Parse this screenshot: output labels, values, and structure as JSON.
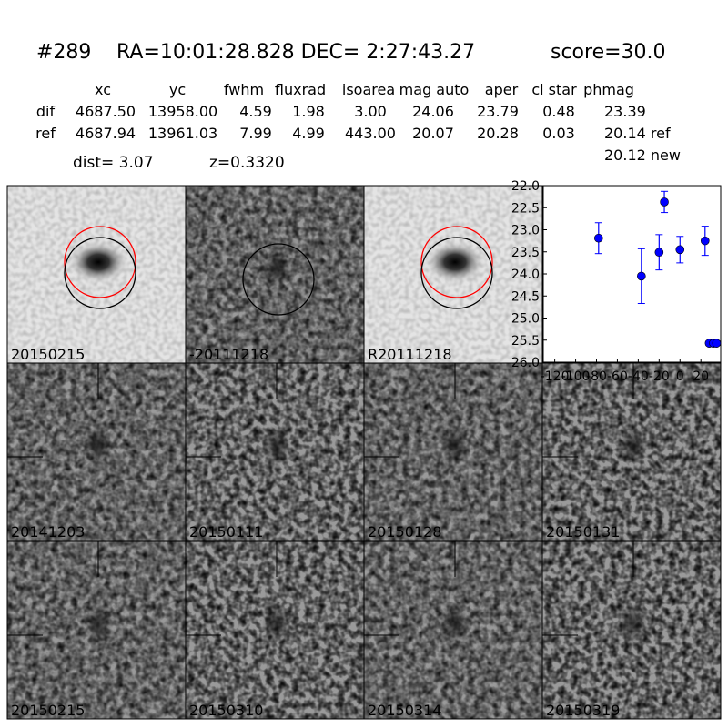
{
  "header": {
    "id": "#289",
    "coords": "RA=10:01:28.828 DEC= 2:27:43.27",
    "score": "score=30.0"
  },
  "table": {
    "columns": [
      "xc",
      "yc",
      "fwhm",
      "fluxrad",
      "isoarea",
      "mag auto",
      "aper",
      "cl star",
      "phmag"
    ],
    "rows": [
      [
        "dif",
        "4687.50",
        "13958.00",
        "4.59",
        "1.98",
        "3.00",
        "24.06",
        "23.79",
        "0.48",
        "23.39"
      ],
      [
        "ref",
        "4687.94",
        "13961.03",
        "7.99",
        "4.99",
        "443.00",
        "20.07",
        "20.28",
        "0.03",
        "20.14 ref"
      ]
    ],
    "extra": "20.12 new"
  },
  "dist": "dist=  3.07",
  "z": "z=0.3320",
  "panels": [
    "20150215",
    "-20111218",
    "R20111218",
    "20141203",
    "20150111",
    "20150128",
    "20150131",
    "20150215",
    "20150310",
    "20150314",
    "20150319"
  ],
  "chart_data": {
    "type": "scatter",
    "x": [
      -78,
      -37,
      -20,
      -15,
      0,
      24,
      28,
      32,
      35
    ],
    "series": [
      {
        "color": "#0000ff",
        "values": [
          23.19,
          24.05,
          23.51,
          22.37,
          23.45,
          23.25,
          25.57,
          25.57,
          25.57
        ],
        "errors": [
          0.35,
          0.62,
          0.4,
          0.24,
          0.3,
          0.33,
          0.05,
          0.05,
          0.05
        ]
      }
    ],
    "xlim": [
      -131,
      39
    ],
    "ylim": [
      26.0,
      22.0
    ],
    "xticks": [
      -120,
      -100,
      -80,
      -60,
      -40,
      -20,
      0,
      20
    ],
    "yticks": [
      {
        "value": 22.0,
        "label": "22.0"
      },
      {
        "value": 22.5,
        "label": "22.5"
      },
      {
        "value": 23.0,
        "label": "23.0"
      },
      {
        "value": 23.5,
        "label": "23.5"
      },
      {
        "value": 24.0,
        "label": "24.0"
      },
      {
        "value": 24.5,
        "label": "24.5"
      },
      {
        "value": 25.0,
        "label": "25.0"
      },
      {
        "value": 25.5,
        "label": "25.5"
      },
      {
        "value": 26.0,
        "label": "26.0"
      }
    ]
  }
}
